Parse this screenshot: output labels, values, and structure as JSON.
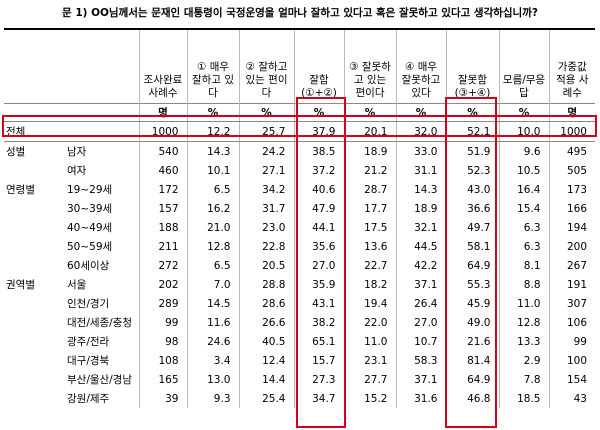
{
  "title": "문 1) OO님께서는 문재인 대통령이 국정운영을 얼마나 잘하고 있다고 혹은 잘못하고 있다고 생각하십니까?",
  "table": {
    "header": [
      "조사완료 사례수",
      "① 매우 잘하고 있다",
      "② 잘하고 있는 편이다",
      "잘함 (①+②)",
      "③ 잘못하고 있는 편이다",
      "④ 매우 잘못하고 있다",
      "잘못함 (③+④)",
      "모름/무응답",
      "가중값 적용 사례수"
    ],
    "units": [
      "명",
      "%",
      "%",
      "%",
      "%",
      "%",
      "%",
      "%",
      "명"
    ],
    "rows": [
      {
        "label": "전체",
        "values": [
          "1000",
          "12.2",
          "25.7",
          "37.9",
          "20.1",
          "32.0",
          "52.1",
          "10.0",
          "1000"
        ]
      },
      {
        "group": "성별",
        "label": "남자",
        "values": [
          "540",
          "14.3",
          "24.2",
          "38.5",
          "18.9",
          "33.0",
          "51.9",
          "9.6",
          "495"
        ]
      },
      {
        "label": "여자",
        "values": [
          "460",
          "10.1",
          "27.1",
          "37.2",
          "21.2",
          "31.1",
          "52.3",
          "10.5",
          "505"
        ]
      },
      {
        "group": "연령별",
        "label": "19~29세",
        "values": [
          "172",
          "6.5",
          "34.2",
          "40.6",
          "28.7",
          "14.3",
          "43.0",
          "16.4",
          "173"
        ]
      },
      {
        "label": "30~39세",
        "values": [
          "157",
          "16.2",
          "31.7",
          "47.9",
          "17.7",
          "18.9",
          "36.6",
          "15.4",
          "166"
        ]
      },
      {
        "label": "40~49세",
        "values": [
          "188",
          "21.0",
          "23.0",
          "44.1",
          "17.5",
          "32.1",
          "49.7",
          "6.3",
          "194"
        ]
      },
      {
        "label": "50~59세",
        "values": [
          "211",
          "12.8",
          "22.8",
          "35.6",
          "13.6",
          "44.5",
          "58.1",
          "6.3",
          "200"
        ]
      },
      {
        "label": "60세이상",
        "values": [
          "272",
          "6.5",
          "20.5",
          "27.0",
          "22.7",
          "42.2",
          "64.9",
          "8.1",
          "267"
        ]
      },
      {
        "group": "권역별",
        "label": "서울",
        "values": [
          "202",
          "7.0",
          "28.8",
          "35.9",
          "18.2",
          "37.1",
          "55.3",
          "8.8",
          "191"
        ]
      },
      {
        "label": "인천/경기",
        "values": [
          "289",
          "14.5",
          "28.6",
          "43.1",
          "19.4",
          "26.4",
          "45.9",
          "11.0",
          "307"
        ]
      },
      {
        "label": "대전/세종/충청",
        "values": [
          "99",
          "11.6",
          "26.6",
          "38.2",
          "22.0",
          "27.0",
          "49.0",
          "12.8",
          "106"
        ]
      },
      {
        "label": "광주/전라",
        "values": [
          "98",
          "24.6",
          "40.5",
          "65.1",
          "11.0",
          "10.7",
          "21.6",
          "13.3",
          "99"
        ]
      },
      {
        "label": "대구/경북",
        "values": [
          "108",
          "3.4",
          "12.4",
          "15.7",
          "23.1",
          "58.3",
          "81.4",
          "2.9",
          "100"
        ]
      },
      {
        "label": "부산/울산/경남",
        "values": [
          "165",
          "13.0",
          "14.4",
          "27.3",
          "27.7",
          "37.1",
          "64.9",
          "7.8",
          "154"
        ]
      },
      {
        "label": "강원/제주",
        "values": [
          "39",
          "9.3",
          "25.4",
          "34.7",
          "15.2",
          "31.6",
          "46.8",
          "18.5",
          "43"
        ]
      }
    ]
  }
}
